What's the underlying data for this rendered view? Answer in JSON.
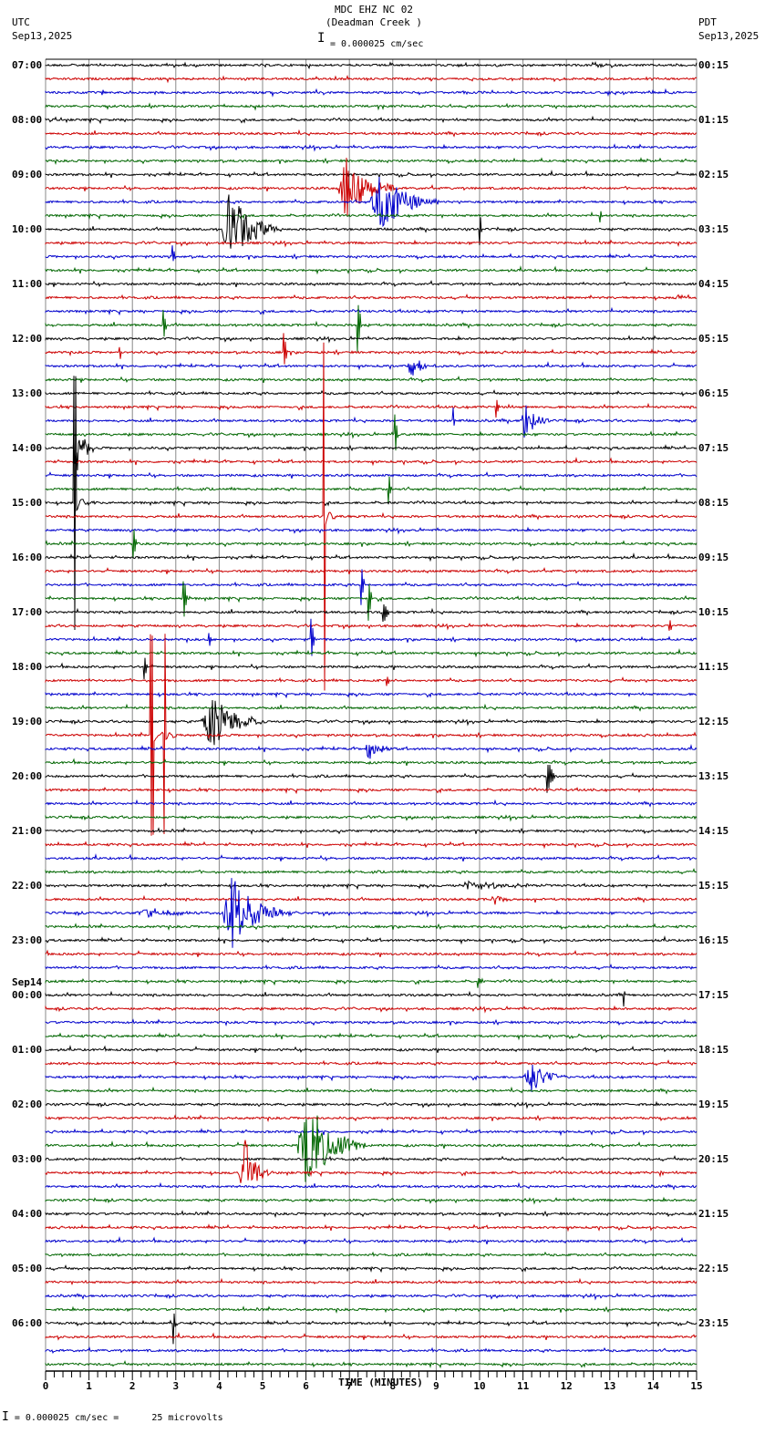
{
  "header": {
    "station": "MDC EHZ NC 02",
    "site_name": "(Deadman Creek )",
    "left_tz": "UTC",
    "left_date": "Sep13,2025",
    "right_tz": "PDT",
    "right_date": "Sep13,2025",
    "scale_text": "= 0.000025 cm/sec"
  },
  "footer": {
    "scale_text": "= 0.000025 cm/sec =      25 microvolts"
  },
  "colors": {
    "trace_cycle": [
      "#000000",
      "#cc0000",
      "#0000cc",
      "#006600"
    ],
    "grid": "#888888",
    "axis": "#000000"
  },
  "chart_data": {
    "type": "line",
    "title": "MDC EHZ NC 02 (Deadman Creek )",
    "subtitle": "= 0.000025 cm/sec",
    "xlabel": "TIME (MINUTES)",
    "ylabel": "",
    "xlim": [
      0,
      15
    ],
    "x_ticks": [
      0,
      1,
      2,
      3,
      4,
      5,
      6,
      7,
      8,
      9,
      10,
      11,
      12,
      13,
      14,
      15
    ],
    "grid": true,
    "traces_per_hour": 4,
    "minutes_per_trace": 15,
    "trace_count": 96,
    "left_hour_labels": [
      {
        "row": 0,
        "label": "07:00"
      },
      {
        "row": 4,
        "label": "08:00"
      },
      {
        "row": 8,
        "label": "09:00"
      },
      {
        "row": 12,
        "label": "10:00"
      },
      {
        "row": 16,
        "label": "11:00"
      },
      {
        "row": 20,
        "label": "12:00"
      },
      {
        "row": 24,
        "label": "13:00"
      },
      {
        "row": 28,
        "label": "14:00"
      },
      {
        "row": 32,
        "label": "15:00"
      },
      {
        "row": 36,
        "label": "16:00"
      },
      {
        "row": 40,
        "label": "17:00"
      },
      {
        "row": 44,
        "label": "18:00"
      },
      {
        "row": 48,
        "label": "19:00"
      },
      {
        "row": 52,
        "label": "20:00"
      },
      {
        "row": 56,
        "label": "21:00"
      },
      {
        "row": 60,
        "label": "22:00"
      },
      {
        "row": 64,
        "label": "23:00"
      },
      {
        "row": 68,
        "label": "00:00",
        "date": "Sep14"
      },
      {
        "row": 72,
        "label": "01:00"
      },
      {
        "row": 76,
        "label": "02:00"
      },
      {
        "row": 80,
        "label": "03:00"
      },
      {
        "row": 84,
        "label": "04:00"
      },
      {
        "row": 88,
        "label": "05:00"
      },
      {
        "row": 92,
        "label": "06:00"
      }
    ],
    "right_hour_labels": [
      {
        "row": 0,
        "label": "00:15"
      },
      {
        "row": 4,
        "label": "01:15"
      },
      {
        "row": 8,
        "label": "02:15"
      },
      {
        "row": 12,
        "label": "03:15"
      },
      {
        "row": 16,
        "label": "04:15"
      },
      {
        "row": 20,
        "label": "05:15"
      },
      {
        "row": 24,
        "label": "06:15"
      },
      {
        "row": 28,
        "label": "07:15"
      },
      {
        "row": 32,
        "label": "08:15"
      },
      {
        "row": 36,
        "label": "09:15"
      },
      {
        "row": 40,
        "label": "10:15"
      },
      {
        "row": 44,
        "label": "11:15"
      },
      {
        "row": 48,
        "label": "12:15"
      },
      {
        "row": 52,
        "label": "13:15"
      },
      {
        "row": 56,
        "label": "14:15"
      },
      {
        "row": 60,
        "label": "15:15"
      },
      {
        "row": 64,
        "label": "16:15"
      },
      {
        "row": 68,
        "label": "17:15"
      },
      {
        "row": 72,
        "label": "18:15"
      },
      {
        "row": 76,
        "label": "19:15"
      },
      {
        "row": 80,
        "label": "20:15"
      },
      {
        "row": 84,
        "label": "21:15"
      },
      {
        "row": 88,
        "label": "22:15"
      },
      {
        "row": 92,
        "label": "23:15"
      }
    ],
    "events": [
      {
        "row": 9,
        "t": 6.72,
        "amp": 35,
        "dur": 1.4,
        "kind": "quake"
      },
      {
        "row": 10,
        "t": 7.46,
        "amp": 38,
        "dur": 1.6,
        "kind": "quake"
      },
      {
        "row": 11,
        "t": 12.77,
        "amp": 12,
        "dur": 0.1,
        "kind": "spike"
      },
      {
        "row": 12,
        "t": 4.05,
        "amp": 45,
        "dur": 1.3,
        "kind": "quake"
      },
      {
        "row": 12,
        "t": 10.0,
        "amp": 28,
        "dur": 0.1,
        "kind": "spike"
      },
      {
        "row": 14,
        "t": 2.9,
        "amp": 16,
        "dur": 0.2,
        "kind": "spike"
      },
      {
        "row": 17,
        "t": 14.5,
        "amp": 4,
        "dur": 0.5,
        "kind": "quake"
      },
      {
        "row": 19,
        "t": 2.69,
        "amp": 28,
        "dur": 0.2,
        "kind": "spike"
      },
      {
        "row": 19,
        "t": 7.18,
        "amp": 38,
        "dur": 0.2,
        "kind": "spike"
      },
      {
        "row": 21,
        "t": 1.7,
        "amp": 12,
        "dur": 0.1,
        "kind": "spike"
      },
      {
        "row": 21,
        "t": 5.48,
        "amp": 22,
        "dur": 0.2,
        "kind": "spike"
      },
      {
        "row": 22,
        "t": 8.34,
        "amp": 14,
        "dur": 0.7,
        "kind": "quake"
      },
      {
        "row": 25,
        "t": 10.36,
        "amp": 20,
        "dur": 0.2,
        "kind": "spike"
      },
      {
        "row": 26,
        "t": 9.39,
        "amp": 14,
        "dur": 0.1,
        "kind": "spike"
      },
      {
        "row": 26,
        "t": 10.92,
        "amp": 22,
        "dur": 0.7,
        "kind": "quake"
      },
      {
        "row": 27,
        "t": 8.03,
        "amp": 30,
        "dur": 0.2,
        "kind": "spike"
      },
      {
        "row": 28,
        "t": 0.63,
        "amp": 36,
        "dur": 0.5,
        "kind": "quake"
      },
      {
        "row": 31,
        "t": 7.88,
        "amp": 22,
        "dur": 0.2,
        "kind": "spike"
      },
      {
        "row": 32,
        "t": 0.65,
        "amp": 140,
        "dur": 0.5,
        "kind": "long"
      },
      {
        "row": 33,
        "t": 6.39,
        "amp": 190,
        "dur": 0.4,
        "kind": "long"
      },
      {
        "row": 35,
        "t": 2.0,
        "amp": 28,
        "dur": 0.2,
        "kind": "spike"
      },
      {
        "row": 38,
        "t": 7.25,
        "amp": 32,
        "dur": 0.2,
        "kind": "spike"
      },
      {
        "row": 39,
        "t": 3.17,
        "amp": 30,
        "dur": 0.2,
        "kind": "spike"
      },
      {
        "row": 39,
        "t": 7.42,
        "amp": 36,
        "dur": 0.2,
        "kind": "spike"
      },
      {
        "row": 40,
        "t": 7.77,
        "amp": 16,
        "dur": 0.3,
        "kind": "spike"
      },
      {
        "row": 41,
        "t": 14.35,
        "amp": 12,
        "dur": 0.2,
        "kind": "spike"
      },
      {
        "row": 42,
        "t": 3.74,
        "amp": 15,
        "dur": 0.2,
        "kind": "spike"
      },
      {
        "row": 42,
        "t": 6.11,
        "amp": 26,
        "dur": 0.2,
        "kind": "spike"
      },
      {
        "row": 44,
        "t": 2.25,
        "amp": 24,
        "dur": 0.2,
        "kind": "spike"
      },
      {
        "row": 45,
        "t": 7.84,
        "amp": 8,
        "dur": 0.2,
        "kind": "spike"
      },
      {
        "row": 48,
        "t": 3.57,
        "amp": 32,
        "dur": 1.5,
        "kind": "quake"
      },
      {
        "row": 49,
        "t": 2.4,
        "amp": 110,
        "dur": 0.8,
        "kind": "long"
      },
      {
        "row": 49,
        "t": 2.72,
        "amp": 110,
        "dur": 0.4,
        "kind": "long"
      },
      {
        "row": 50,
        "t": 7.35,
        "amp": 12,
        "dur": 0.7,
        "kind": "quake"
      },
      {
        "row": 52,
        "t": 11.55,
        "amp": 20,
        "dur": 0.4,
        "kind": "spike"
      },
      {
        "row": 60,
        "t": 9.4,
        "amp": 5,
        "dur": 2.6,
        "kind": "quake"
      },
      {
        "row": 61,
        "t": 10.23,
        "amp": 8,
        "dur": 0.6,
        "kind": "quake"
      },
      {
        "row": 62,
        "t": 4.05,
        "amp": 42,
        "dur": 1.6,
        "kind": "quake"
      },
      {
        "row": 62,
        "t": 2.0,
        "amp": 6,
        "dur": 2.0,
        "kind": "quake"
      },
      {
        "row": 67,
        "t": 9.95,
        "amp": 8,
        "dur": 0.3,
        "kind": "spike"
      },
      {
        "row": 68,
        "t": 13.3,
        "amp": 22,
        "dur": 0.1,
        "kind": "spike"
      },
      {
        "row": 74,
        "t": 11.03,
        "amp": 18,
        "dur": 1.0,
        "kind": "quake"
      },
      {
        "row": 79,
        "t": 5.78,
        "amp": 55,
        "dur": 1.6,
        "kind": "quake"
      },
      {
        "row": 81,
        "t": 4.45,
        "amp": 42,
        "dur": 0.8,
        "kind": "quake"
      },
      {
        "row": 81,
        "t": 14.14,
        "amp": 8,
        "dur": 0.1,
        "kind": "spike"
      },
      {
        "row": 92,
        "t": 2.94,
        "amp": 26,
        "dur": 0.1,
        "kind": "spike"
      }
    ]
  }
}
